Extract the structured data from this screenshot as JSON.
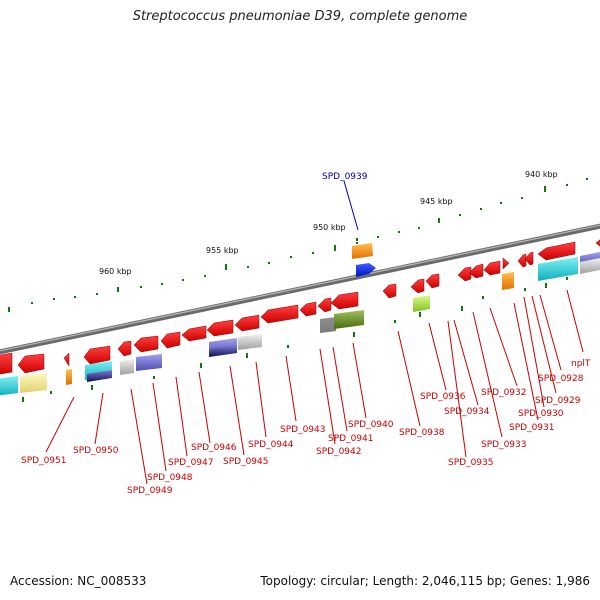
{
  "title": "Streptococcus pneumoniae D39, complete genome",
  "footer": {
    "accession": "Accession: NC_008533",
    "topology": "Topology: circular; Length: 2,046,115 bp; Genes: 1,986"
  },
  "colors": {
    "backbone": "#7a7a7a",
    "gene_label": "#cc0000",
    "highlight_label": "#0000aa",
    "tick": "#117711"
  },
  "scale_labels": [
    {
      "kbp": 940,
      "text": "940 kbp"
    },
    {
      "kbp": 945,
      "text": "945 kbp"
    },
    {
      "kbp": 950,
      "text": "950 kbp"
    },
    {
      "kbp": 955,
      "text": "955 kbp"
    },
    {
      "kbp": 960,
      "text": "960 kbp"
    }
  ],
  "highlighted_gene": "SPD_0939",
  "gene_labels": [
    "nplT",
    "SPD_0928",
    "SPD_0929",
    "SPD_0930",
    "SPD_0931",
    "SPD_0932",
    "SPD_0933",
    "SPD_0934",
    "SPD_0935",
    "SPD_0936",
    "SPD_0938",
    "SPD_0940",
    "SPD_0941",
    "SPD_0942",
    "SPD_0943",
    "SPD_0944",
    "SPD_0945",
    "SPD_0946",
    "SPD_0947",
    "SPD_0948",
    "SPD_0949",
    "SPD_0950",
    "SPD_0951"
  ]
}
